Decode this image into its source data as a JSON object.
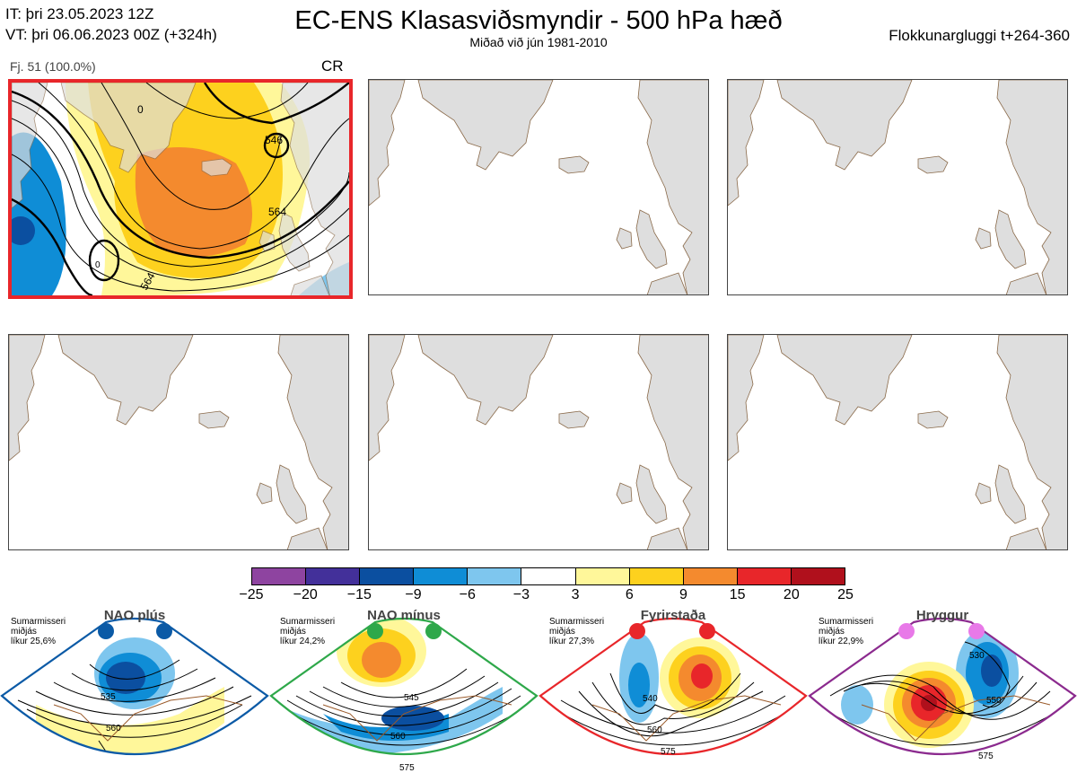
{
  "header": {
    "it_line": "IT: þri 23.05.2023 12Z",
    "vt_line": "VT: þri 06.06.2023 00Z  (+324h)",
    "title": "EC-ENS Klasasviðsmyndir - 500 hPa hæð",
    "subtitle": "Miðað við jún 1981-2010",
    "window": "Flokkunargluggi t+264-360"
  },
  "cluster1": {
    "members_label": "Fj. 51 (100.0%)",
    "regime_code": "CR",
    "contour_labels": [
      "546",
      "564",
      "564",
      "0",
      "0"
    ]
  },
  "colorbar": {
    "colors": [
      "#8e44a0",
      "#43309a",
      "#0b4fa0",
      "#0f8dd6",
      "#7ec6ee",
      "#ffffff",
      "#fff79a",
      "#fdd11e",
      "#f48a2e",
      "#e8262a",
      "#b0101c"
    ],
    "ticks": [
      "−25",
      "−20",
      "−15",
      "−9",
      "−6",
      "−3",
      "3",
      "6",
      "9",
      "15",
      "20",
      "25"
    ]
  },
  "regimes": [
    {
      "name": "NAO plús",
      "season": "Sumarmisseri",
      "median": "miðjás",
      "prob": "líkur 25,6%",
      "color": "#0b5aa6",
      "dot": "#0b5aa6",
      "labels": [
        "535",
        "560"
      ]
    },
    {
      "name": "NAO mínus",
      "season": "Sumarmisseri",
      "median": "miðjás",
      "prob": "líkur 24,2%",
      "color": "#2ea84a",
      "dot": "#2ea84a",
      "labels": [
        "545",
        "560",
        "575"
      ]
    },
    {
      "name": "Fyrirstaða",
      "season": "Sumarmisseri",
      "median": "miðjás",
      "prob": "líkur 27,3%",
      "color": "#e8262a",
      "dot": "#e8262a",
      "labels": [
        "540",
        "560",
        "575"
      ]
    },
    {
      "name": "Hryggur",
      "season": "Sumarmisseri",
      "median": "miðjás",
      "prob": "líkur 22,9%",
      "color": "#8b2a8e",
      "dot": "#e879e8",
      "labels": [
        "530",
        "550",
        "575"
      ]
    }
  ]
}
